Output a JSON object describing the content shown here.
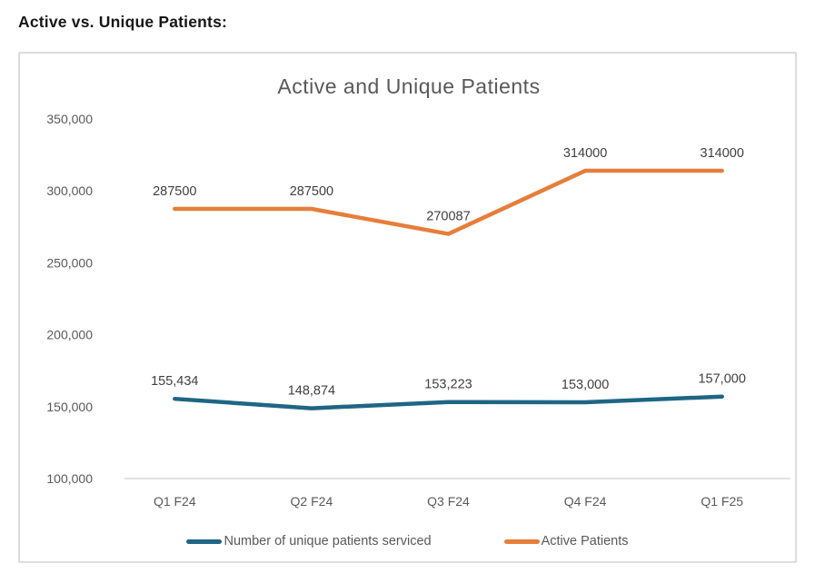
{
  "page": {
    "heading": "Active vs. Unique Patients:"
  },
  "chart_data": {
    "type": "line",
    "title": "Active and Unique Patients",
    "xlabel": "",
    "ylabel": "",
    "categories": [
      "Q1 F24",
      "Q2 F24",
      "Q3 F24",
      "Q4 F24",
      "Q1 F25"
    ],
    "series": [
      {
        "name": "Number of unique patients serviced",
        "color": "#1F6584",
        "values": [
          155434,
          148874,
          153223,
          153000,
          157000
        ],
        "labels": [
          "155,434",
          "148,874",
          "153,223",
          "153,000",
          "157,000"
        ]
      },
      {
        "name": "Active Patients",
        "color": "#E67E3B",
        "values": [
          287500,
          287500,
          270087,
          314000,
          314000
        ],
        "labels": [
          "287500",
          "287500",
          "270087",
          "314000",
          "314000"
        ]
      }
    ],
    "ylim": [
      100000,
      350000
    ],
    "y_ticks": [
      {
        "value": 100000,
        "label": "100,000"
      },
      {
        "value": 150000,
        "label": "150,000"
      },
      {
        "value": 200000,
        "label": "200,000"
      },
      {
        "value": 250000,
        "label": "250,000"
      },
      {
        "value": 300000,
        "label": "300,000"
      },
      {
        "value": 350000,
        "label": "350,000"
      }
    ],
    "grid": false,
    "legend_position": "bottom",
    "colors": {
      "title_text": "#595959",
      "tick_text": "#595959",
      "data_label_text": "#404040",
      "axis_line": "#d9d9d9"
    }
  }
}
